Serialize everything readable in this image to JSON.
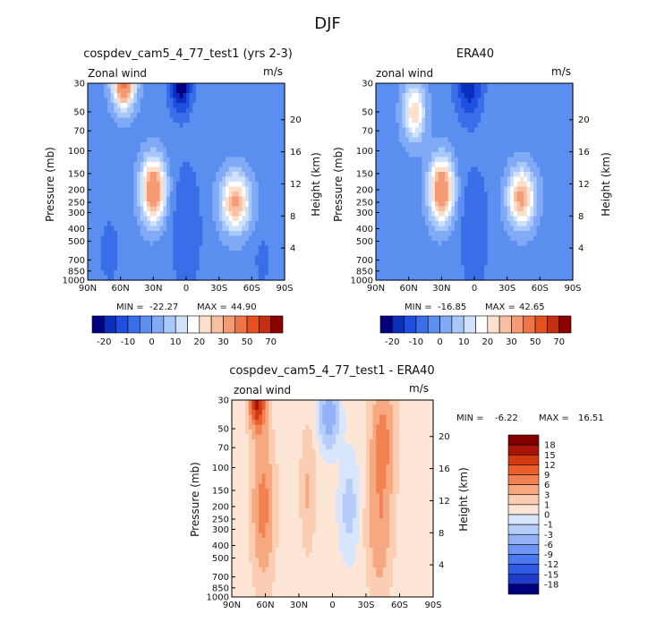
{
  "figure_title": "DJF",
  "chart_data": [
    {
      "type": "heatmap",
      "id": "model",
      "title": "cospdev_cam5_4_77_test1 (yrs 2-3)",
      "variable_label": "Zonal wind",
      "units": "m/s",
      "xlabel": "",
      "ylabel": "Pressure (mb)",
      "right_ylabel": "Height (km)",
      "x_ticks": [
        "90N",
        "60N",
        "30N",
        "0",
        "30S",
        "60S",
        "90S"
      ],
      "y_ticks": [
        "30",
        "50",
        "70",
        "100",
        "150",
        "200",
        "250",
        "300",
        "400",
        "500",
        "700",
        "850",
        "1000"
      ],
      "height_ticks": [
        "20",
        "16",
        "12",
        "8",
        "4"
      ],
      "stats": {
        "min_label": "MIN =",
        "min_value": "-22.27",
        "max_label": "MAX =",
        "max_value": "44.90"
      },
      "features": [
        {
          "lat": 57,
          "p": 30,
          "value": 44,
          "spread": [
            10,
            0.45
          ]
        },
        {
          "lat": 30,
          "p": 200,
          "value": 42,
          "spread": [
            11,
            0.55
          ]
        },
        {
          "lat": -45,
          "p": 250,
          "value": 33,
          "spread": [
            13,
            0.5
          ]
        },
        {
          "lat": 5,
          "p": 30,
          "value": -22,
          "spread": [
            10,
            0.5
          ]
        },
        {
          "lat": 0,
          "p": 400,
          "value": -8,
          "spread": [
            14,
            1.2
          ]
        },
        {
          "lat": 70,
          "p": 600,
          "value": -6,
          "spread": [
            10,
            0.6
          ]
        },
        {
          "lat": -70,
          "p": 700,
          "value": -5,
          "spread": [
            8,
            0.5
          ]
        }
      ],
      "base_value": -2,
      "colorbar_labels": [
        "-20",
        "-10",
        "0",
        "10",
        "20",
        "30",
        "50",
        "70"
      ]
    },
    {
      "type": "heatmap",
      "id": "obs",
      "title": "ERA40",
      "variable_label": "zonal wind",
      "units": "m/s",
      "xlabel": "",
      "ylabel": "Pressure (mb)",
      "right_ylabel": "Height (km)",
      "x_ticks": [
        "90N",
        "60N",
        "30N",
        "0",
        "30S",
        "60S",
        "90S"
      ],
      "y_ticks": [
        "30",
        "50",
        "70",
        "100",
        "150",
        "200",
        "250",
        "300",
        "400",
        "500",
        "700",
        "850",
        "1000"
      ],
      "height_ticks": [
        "20",
        "16",
        "12",
        "8",
        "4"
      ],
      "stats": {
        "min_label": "MIN =",
        "min_value": "-16.85",
        "max_label": "MAX =",
        "max_value": "42.65"
      },
      "features": [
        {
          "lat": 55,
          "p": 50,
          "value": 26,
          "spread": [
            10,
            0.5
          ]
        },
        {
          "lat": 30,
          "p": 200,
          "value": 42,
          "spread": [
            11,
            0.55
          ]
        },
        {
          "lat": -43,
          "p": 230,
          "value": 34,
          "spread": [
            12,
            0.5
          ]
        },
        {
          "lat": 5,
          "p": 30,
          "value": -17,
          "spread": [
            12,
            0.6
          ]
        },
        {
          "lat": 0,
          "p": 400,
          "value": -7,
          "spread": [
            14,
            1.2
          ]
        }
      ],
      "base_value": -2,
      "colorbar_labels": [
        "-20",
        "-10",
        "0",
        "10",
        "20",
        "30",
        "50",
        "70"
      ]
    },
    {
      "type": "heatmap",
      "id": "diff",
      "title": "cospdev_cam5_4_77_test1 - ERA40",
      "variable_label": "zonal wind",
      "units": "m/s",
      "xlabel": "",
      "ylabel": "Pressure (mb)",
      "right_ylabel": "Height (km)",
      "x_ticks": [
        "90N",
        "60N",
        "30N",
        "0",
        "30S",
        "60S",
        "90S"
      ],
      "y_ticks": [
        "30",
        "50",
        "70",
        "100",
        "150",
        "200",
        "250",
        "300",
        "400",
        "500",
        "700",
        "850",
        "1000"
      ],
      "height_ticks": [
        "20",
        "16",
        "12",
        "8",
        "4"
      ],
      "stats": {
        "min_label": "MIN =",
        "min_value": "-6.22",
        "max_label": "MAX =",
        "max_value": "16.51"
      },
      "features": [
        {
          "lat": 67,
          "p": 30,
          "value": 16,
          "spread": [
            7,
            0.5
          ]
        },
        {
          "lat": 62,
          "p": 200,
          "value": 7,
          "spread": [
            9,
            1.2
          ]
        },
        {
          "lat": -45,
          "p": 60,
          "value": 7,
          "spread": [
            10,
            1.0
          ]
        },
        {
          "lat": -42,
          "p": 300,
          "value": 5,
          "spread": [
            10,
            1.1
          ]
        },
        {
          "lat": 22,
          "p": 150,
          "value": 3,
          "spread": [
            6,
            1.0
          ]
        },
        {
          "lat": 3,
          "p": 40,
          "value": -5,
          "spread": [
            8,
            0.5
          ]
        },
        {
          "lat": -15,
          "p": 200,
          "value": -2,
          "spread": [
            8,
            0.8
          ]
        }
      ],
      "base_value": 0.3,
      "colorbar_labels": [
        "18",
        "15",
        "12",
        "9",
        "6",
        "3",
        "1",
        "0",
        "-1",
        "-3",
        "-6",
        "-9",
        "-12",
        "-15",
        "-18"
      ]
    }
  ],
  "colors": {
    "full_field_levels": [
      "#00007f",
      "#0a2fbf",
      "#1e4fe0",
      "#3a6ee8",
      "#5a8ff0",
      "#80aaf5",
      "#a8c8fa",
      "#d0e2fc",
      "#ffffff",
      "#fde0cc",
      "#f8bfa0",
      "#f49a74",
      "#ef7548",
      "#e6501f",
      "#c42f10",
      "#8b0000"
    ],
    "diff_levels": [
      "#00007f",
      "#1e3cc8",
      "#2f5ae6",
      "#4a78ee",
      "#6e96f2",
      "#93b2f6",
      "#b6cdf9",
      "#d8e6fc",
      "#fde6d6",
      "#fbcdb2",
      "#f6a981",
      "#f28252",
      "#ec5e2b",
      "#d33a12",
      "#a81508",
      "#800000"
    ]
  }
}
